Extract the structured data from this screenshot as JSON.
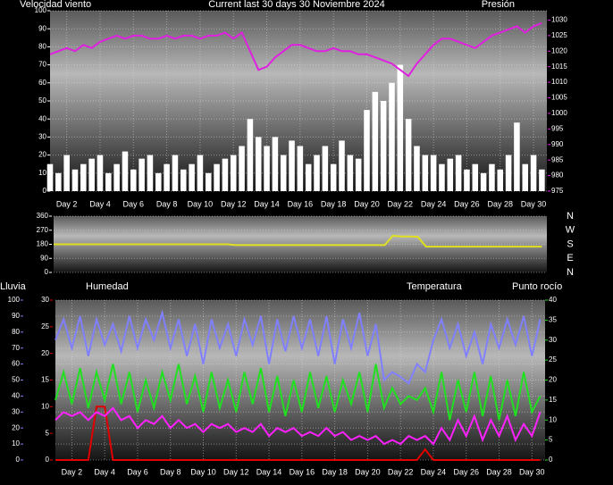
{
  "chart_data": [
    {
      "type": "bar",
      "title": "Current last 30 days 30 Noviembre 2024",
      "grid": true,
      "x": [
        1,
        1.5,
        2,
        2.5,
        3,
        3.5,
        4,
        4.5,
        5,
        5.5,
        6,
        6.5,
        7,
        7.5,
        8,
        8.5,
        9,
        9.5,
        10,
        10.5,
        11,
        11.5,
        12,
        12.5,
        13,
        13.5,
        14,
        14.5,
        15,
        15.5,
        16,
        16.5,
        17,
        17.5,
        18,
        18.5,
        19,
        19.5,
        20,
        20.5,
        21,
        21.5,
        22,
        22.5,
        23,
        23.5,
        24,
        24.5,
        25,
        25.5,
        26,
        26.5,
        27,
        27.5,
        28,
        28.5,
        29,
        29.5,
        30,
        30.5
      ],
      "xlim": [
        1,
        30.8
      ],
      "xticks": [
        {
          "value": 2,
          "label": "Day 2"
        },
        {
          "value": 4,
          "label": "Day 4"
        },
        {
          "value": 6,
          "label": "Day 6"
        },
        {
          "value": 8,
          "label": "Day 8"
        },
        {
          "value": 10,
          "label": "Day 10"
        },
        {
          "value": 12,
          "label": "Day 12"
        },
        {
          "value": 14,
          "label": "Day 14"
        },
        {
          "value": 16,
          "label": "Day 16"
        },
        {
          "value": 18,
          "label": "Day 18"
        },
        {
          "value": 20,
          "label": "Day 20"
        },
        {
          "value": 22,
          "label": "Day 22"
        },
        {
          "value": 24,
          "label": "Day 24"
        },
        {
          "value": 26,
          "label": "Day 26"
        },
        {
          "value": 28,
          "label": "Day 28"
        },
        {
          "value": 30,
          "label": "Day 30"
        }
      ],
      "ylim": [
        0,
        100
      ],
      "yticks": [
        0,
        10,
        20,
        30,
        40,
        50,
        60,
        70,
        80,
        90,
        100
      ],
      "y2lim": [
        975,
        1033
      ],
      "y2ticks": [
        975,
        980,
        985,
        990,
        995,
        1000,
        1005,
        1010,
        1015,
        1020,
        1025,
        1030
      ],
      "series": [
        {
          "name": "Velocidad viento",
          "type": "bar",
          "color": "#ffffff",
          "values": [
            15,
            10,
            20,
            12,
            15,
            18,
            20,
            10,
            15,
            22,
            12,
            18,
            20,
            10,
            15,
            20,
            12,
            15,
            20,
            10,
            15,
            18,
            20,
            25,
            40,
            30,
            25,
            30,
            20,
            28,
            25,
            15,
            20,
            25,
            15,
            28,
            20,
            18,
            45,
            55,
            50,
            60,
            70,
            40,
            25,
            20,
            20,
            15,
            18,
            20,
            12,
            15,
            10,
            15,
            12,
            20,
            38,
            15,
            20,
            12
          ]
        },
        {
          "name": "Presión",
          "type": "line",
          "axis": "y2",
          "color": "#e020e0",
          "values": [
            1019,
            1020,
            1021,
            1020,
            1022,
            1021,
            1023,
            1024,
            1025,
            1024,
            1025,
            1025,
            1024,
            1024,
            1025,
            1024,
            1025,
            1025,
            1024,
            1025,
            1025,
            1026,
            1024,
            1026,
            1020,
            1014,
            1015,
            1018,
            1020,
            1022,
            1022,
            1021,
            1020,
            1020,
            1021,
            1020,
            1020,
            1019,
            1019,
            1018,
            1017,
            1016,
            1014,
            1012,
            1016,
            1019,
            1022,
            1024,
            1024,
            1023,
            1022,
            1021,
            1023,
            1025,
            1026,
            1027,
            1028,
            1026,
            1028,
            1029
          ]
        }
      ]
    },
    {
      "type": "line",
      "grid": true,
      "x": [
        1,
        1.5,
        2,
        2.5,
        3,
        3.5,
        4,
        4.5,
        5,
        5.5,
        6,
        6.5,
        7,
        7.5,
        8,
        8.5,
        9,
        9.5,
        10,
        10.5,
        11,
        11.5,
        12,
        12.5,
        13,
        13.5,
        14,
        14.5,
        15,
        15.5,
        16,
        16.5,
        17,
        17.5,
        18,
        18.5,
        19,
        19.5,
        20,
        20.5,
        21,
        21.5,
        22,
        22.5,
        23,
        23.5,
        24,
        24.5,
        25,
        25.5,
        26,
        26.5,
        27,
        27.5,
        28,
        28.5,
        29,
        29.5,
        30,
        30.5
      ],
      "xlim": [
        1,
        30.8
      ],
      "ylim": [
        0,
        360
      ],
      "yticks": [
        0,
        90,
        180,
        270,
        360
      ],
      "compass": [
        {
          "value": 360,
          "label": "N"
        },
        {
          "value": 270,
          "label": "W"
        },
        {
          "value": 180,
          "label": "S"
        },
        {
          "value": 90,
          "label": "E"
        },
        {
          "value": 0,
          "label": "N"
        }
      ],
      "series": [
        {
          "type": "line",
          "color": "#e0e020",
          "values": [
            180,
            180,
            180,
            180,
            180,
            180,
            180,
            180,
            180,
            180,
            180,
            180,
            180,
            180,
            180,
            180,
            180,
            180,
            180,
            180,
            180,
            180,
            175,
            175,
            175,
            175,
            175,
            175,
            175,
            175,
            175,
            175,
            175,
            175,
            175,
            175,
            175,
            175,
            175,
            175,
            175,
            235,
            230,
            230,
            228,
            165,
            165,
            165,
            165,
            165,
            165,
            165,
            165,
            165,
            165,
            165,
            165,
            165,
            165,
            165
          ]
        }
      ]
    },
    {
      "type": "line",
      "grid": true,
      "x": [
        1,
        1.5,
        2,
        2.5,
        3,
        3.5,
        4,
        4.5,
        5,
        5.5,
        6,
        6.5,
        7,
        7.5,
        8,
        8.5,
        9,
        9.5,
        10,
        10.5,
        11,
        11.5,
        12,
        12.5,
        13,
        13.5,
        14,
        14.5,
        15,
        15.5,
        16,
        16.5,
        17,
        17.5,
        18,
        18.5,
        19,
        19.5,
        20,
        20.5,
        21,
        21.5,
        22,
        22.5,
        23,
        23.5,
        24,
        24.5,
        25,
        25.5,
        26,
        26.5,
        27,
        27.5,
        28,
        28.5,
        29,
        29.5,
        30,
        30.5
      ],
      "xlim": [
        1,
        30.8
      ],
      "xticks": [
        {
          "value": 2,
          "label": "Day 2"
        },
        {
          "value": 4,
          "label": "Day 4"
        },
        {
          "value": 6,
          "label": "Day 6"
        },
        {
          "value": 8,
          "label": "Day 8"
        },
        {
          "value": 10,
          "label": "Day 10"
        },
        {
          "value": 12,
          "label": "Day 12"
        },
        {
          "value": 14,
          "label": "Day 14"
        },
        {
          "value": 16,
          "label": "Day 16"
        },
        {
          "value": 18,
          "label": "Day 18"
        },
        {
          "value": 20,
          "label": "Day 20"
        },
        {
          "value": 22,
          "label": "Day 22"
        },
        {
          "value": 24,
          "label": "Day 24"
        },
        {
          "value": 26,
          "label": "Day 26"
        },
        {
          "value": 28,
          "label": "Day 28"
        },
        {
          "value": 30,
          "label": "Day 30"
        }
      ],
      "ylim": [
        0,
        100
      ],
      "yticks": [
        0,
        10,
        20,
        30,
        40,
        50,
        60,
        70,
        80,
        90,
        100
      ],
      "y3lim": [
        0,
        30
      ],
      "y3ticks": [
        0,
        5,
        10,
        15,
        20,
        25,
        30
      ],
      "y2lim": [
        0,
        40
      ],
      "y2ticks": [
        0,
        5,
        10,
        15,
        20,
        25,
        30,
        35,
        40
      ],
      "series": [
        {
          "name": "Lluvia",
          "type": "line",
          "axis": "y3",
          "color": "#e00000",
          "values": [
            0,
            0,
            0,
            0,
            0,
            10,
            10,
            0,
            0,
            0,
            0,
            0,
            0,
            0,
            0,
            0,
            0,
            0,
            0,
            0,
            0,
            0,
            0,
            0,
            0,
            0,
            0,
            0,
            0,
            0,
            0,
            0,
            0,
            0,
            0,
            0,
            0,
            0,
            0,
            0,
            0,
            0,
            0,
            0,
            0,
            2,
            0,
            0,
            0,
            0,
            0,
            0,
            0,
            0,
            0,
            0,
            0,
            0,
            0,
            0
          ]
        },
        {
          "name": "Humedad",
          "type": "line",
          "color": "#8080ff",
          "values": [
            75,
            88,
            70,
            90,
            65,
            88,
            72,
            85,
            68,
            90,
            70,
            88,
            75,
            92,
            70,
            88,
            65,
            85,
            60,
            88,
            70,
            85,
            65,
            88,
            72,
            90,
            60,
            88,
            68,
            90,
            70,
            88,
            65,
            90,
            60,
            88,
            70,
            92,
            65,
            85,
            50,
            55,
            52,
            48,
            60,
            55,
            75,
            88,
            70,
            85,
            65,
            80,
            60,
            85,
            70,
            88,
            72,
            90,
            65,
            88
          ]
        },
        {
          "name": "Temperatura",
          "type": "line",
          "axis": "y2",
          "color": "#20e020",
          "values": [
            15,
            22,
            14,
            23,
            13,
            22,
            15,
            24,
            14,
            22,
            12,
            20,
            13,
            22,
            15,
            24,
            14,
            21,
            12,
            22,
            13,
            20,
            12,
            22,
            14,
            23,
            12,
            21,
            11,
            20,
            12,
            22,
            13,
            21,
            12,
            20,
            14,
            22,
            12,
            24,
            13,
            18,
            14,
            16,
            15,
            18,
            12,
            22,
            10,
            20,
            12,
            22,
            11,
            21,
            10,
            20,
            11,
            22,
            12,
            16
          ]
        },
        {
          "name": "Punto rocío",
          "type": "line",
          "axis": "y2",
          "color": "#ff20ff",
          "values": [
            10,
            12,
            11,
            12,
            10,
            12,
            11,
            13,
            10,
            11,
            8,
            10,
            9,
            11,
            8,
            10,
            8,
            9,
            7,
            9,
            8,
            9,
            7,
            8,
            7,
            9,
            6,
            8,
            7,
            8,
            6,
            7,
            6,
            8,
            6,
            7,
            5,
            6,
            5,
            6,
            4,
            5,
            4,
            6,
            5,
            6,
            4,
            8,
            5,
            10,
            6,
            11,
            5,
            10,
            6,
            11,
            5,
            9,
            6,
            12
          ]
        }
      ]
    }
  ]
}
